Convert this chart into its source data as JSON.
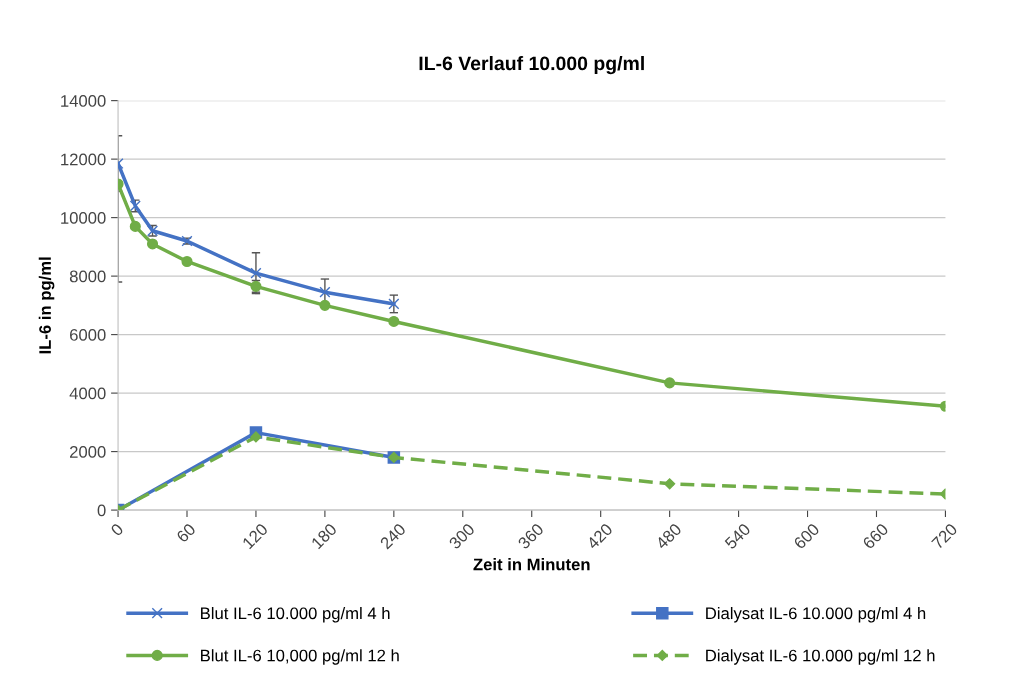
{
  "chart_data": {
    "type": "line",
    "title": "IL-6 Verlauf 10.000 pg/ml",
    "xlabel": "Zeit in Minuten",
    "ylabel": "IL-6 in pg/ml",
    "xlim": [
      0,
      720
    ],
    "xticks": [
      0,
      60,
      120,
      180,
      240,
      300,
      360,
      420,
      480,
      540,
      600,
      660,
      720
    ],
    "ylim": [
      0,
      14000
    ],
    "yticks": [
      0,
      2000,
      4000,
      6000,
      8000,
      10000,
      12000,
      14000
    ],
    "grid": "y",
    "legend": "bottom",
    "series": [
      {
        "name": "Blut IL-6 10.000 pg/ml 4 h",
        "color": "#4472c4",
        "marker": "cross",
        "line_style": "solid",
        "x": [
          0,
          15,
          30,
          60,
          120,
          180,
          240
        ],
        "values": [
          11850,
          10400,
          9550,
          9200,
          8100,
          7450,
          7050
        ],
        "errors": [
          950,
          200,
          180,
          100,
          700,
          450,
          300
        ]
      },
      {
        "name": "Blut IL-6 10,000 pg/ml 12 h",
        "color": "#70ad47",
        "marker": "circle",
        "line_style": "solid",
        "x": [
          0,
          15,
          30,
          60,
          120,
          180,
          240,
          480,
          720
        ],
        "values": [
          11150,
          9700,
          9100,
          8500,
          7650,
          7000,
          6450,
          4350,
          3550
        ],
        "errors": [
          [
            7800,
            11150
          ],
          null,
          null,
          null,
          [
            7450,
            7850
          ],
          null,
          null,
          null,
          null
        ]
      },
      {
        "name": "Dialysat IL-6 10.000 pg/ml 4 h",
        "color": "#4472c4",
        "marker": "square",
        "line_style": "solid",
        "x": [
          0,
          120,
          240
        ],
        "values": [
          0,
          2650,
          1800
        ]
      },
      {
        "name": "Dialysat IL-6 10.000 pg/ml 12 h",
        "color": "#70ad47",
        "marker": "diamond",
        "line_style": "dashed",
        "x": [
          0,
          120,
          240,
          480,
          720
        ],
        "values": [
          0,
          2500,
          1800,
          900,
          550
        ]
      }
    ]
  }
}
